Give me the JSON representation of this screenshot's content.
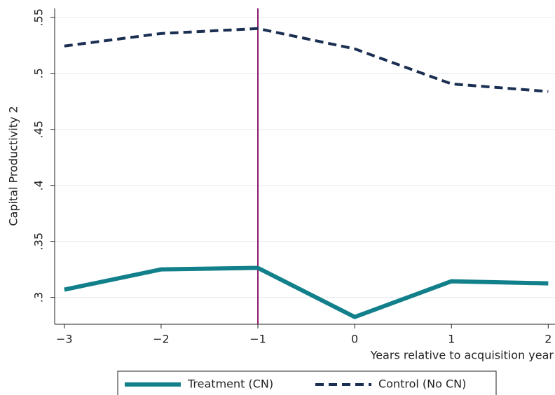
{
  "chart_data": {
    "type": "line",
    "x": [
      -3,
      -2,
      -1,
      0,
      1,
      2
    ],
    "series": [
      {
        "name": "Treatment (CN)",
        "color": "#12808b",
        "dash": false,
        "values": [
          0.3069,
          0.325,
          0.3263,
          0.2825,
          0.3144,
          0.3125
        ]
      },
      {
        "name": "Control (No CN)",
        "color": "#1b2f52",
        "dash": true,
        "values": [
          0.5244,
          0.5356,
          0.54,
          0.5219,
          0.4906,
          0.4838
        ]
      }
    ],
    "xlabel": "Years relative to acquisition year",
    "ylabel": "Capital Productivity 2",
    "xlim": [
      -3.1,
      2.07
    ],
    "ylim": [
      0.276,
      0.558
    ],
    "xticks": [
      {
        "value": -3,
        "label": "−3"
      },
      {
        "value": -2,
        "label": "−2"
      },
      {
        "value": -1,
        "label": "−1"
      },
      0,
      1,
      2
    ],
    "yticks": [
      {
        "value": 0.3,
        "label": ".3"
      },
      {
        "value": 0.35,
        "label": ".35"
      },
      {
        "value": 0.4,
        "label": ".4"
      },
      {
        "value": 0.45,
        "label": ".45"
      },
      {
        "value": 0.5,
        "label": ".5"
      },
      {
        "value": 0.55,
        "label": ".55"
      }
    ],
    "vline": -1,
    "vline_color": "#8b1a6e",
    "grid": true,
    "legend": "bottom"
  }
}
